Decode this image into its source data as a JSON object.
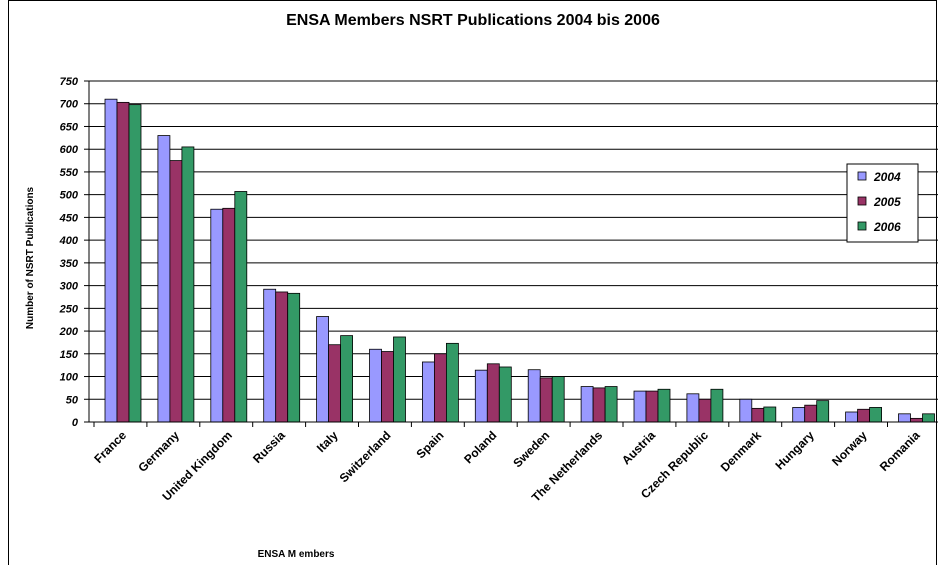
{
  "chart_data": {
    "type": "bar",
    "title": "ENSA Members NSRT Publications 2004 bis 2006",
    "xlabel": "ENSA M embers",
    "ylabel": "Number of NSRT Publications",
    "ylim": [
      0,
      750
    ],
    "yticks": [
      0,
      50,
      100,
      150,
      200,
      250,
      300,
      350,
      400,
      450,
      500,
      550,
      600,
      650,
      700,
      750
    ],
    "grid": true,
    "legend_position": "right",
    "categories": [
      "France",
      "Germany",
      "United Kingdom",
      "Russia",
      "Italy",
      "Switzerland",
      "Spain",
      "Poland",
      "Sweden",
      "The Netherlands",
      "Austria",
      "Czech Republic",
      "Denmark",
      "Hungary",
      "Norway",
      "Romania"
    ],
    "series": [
      {
        "name": "2004",
        "color": "#9999ff",
        "values": [
          710,
          630,
          468,
          292,
          232,
          160,
          132,
          114,
          115,
          78,
          68,
          62,
          50,
          32,
          22,
          18
        ]
      },
      {
        "name": "2005",
        "color": "#993366",
        "values": [
          703,
          575,
          470,
          286,
          170,
          155,
          150,
          128,
          97,
          75,
          68,
          50,
          30,
          37,
          28,
          8
        ]
      },
      {
        "name": "2006",
        "color": "#339966",
        "values": [
          698,
          605,
          507,
          283,
          190,
          187,
          173,
          121,
          100,
          78,
          72,
          72,
          33,
          47,
          32,
          18
        ]
      }
    ]
  }
}
